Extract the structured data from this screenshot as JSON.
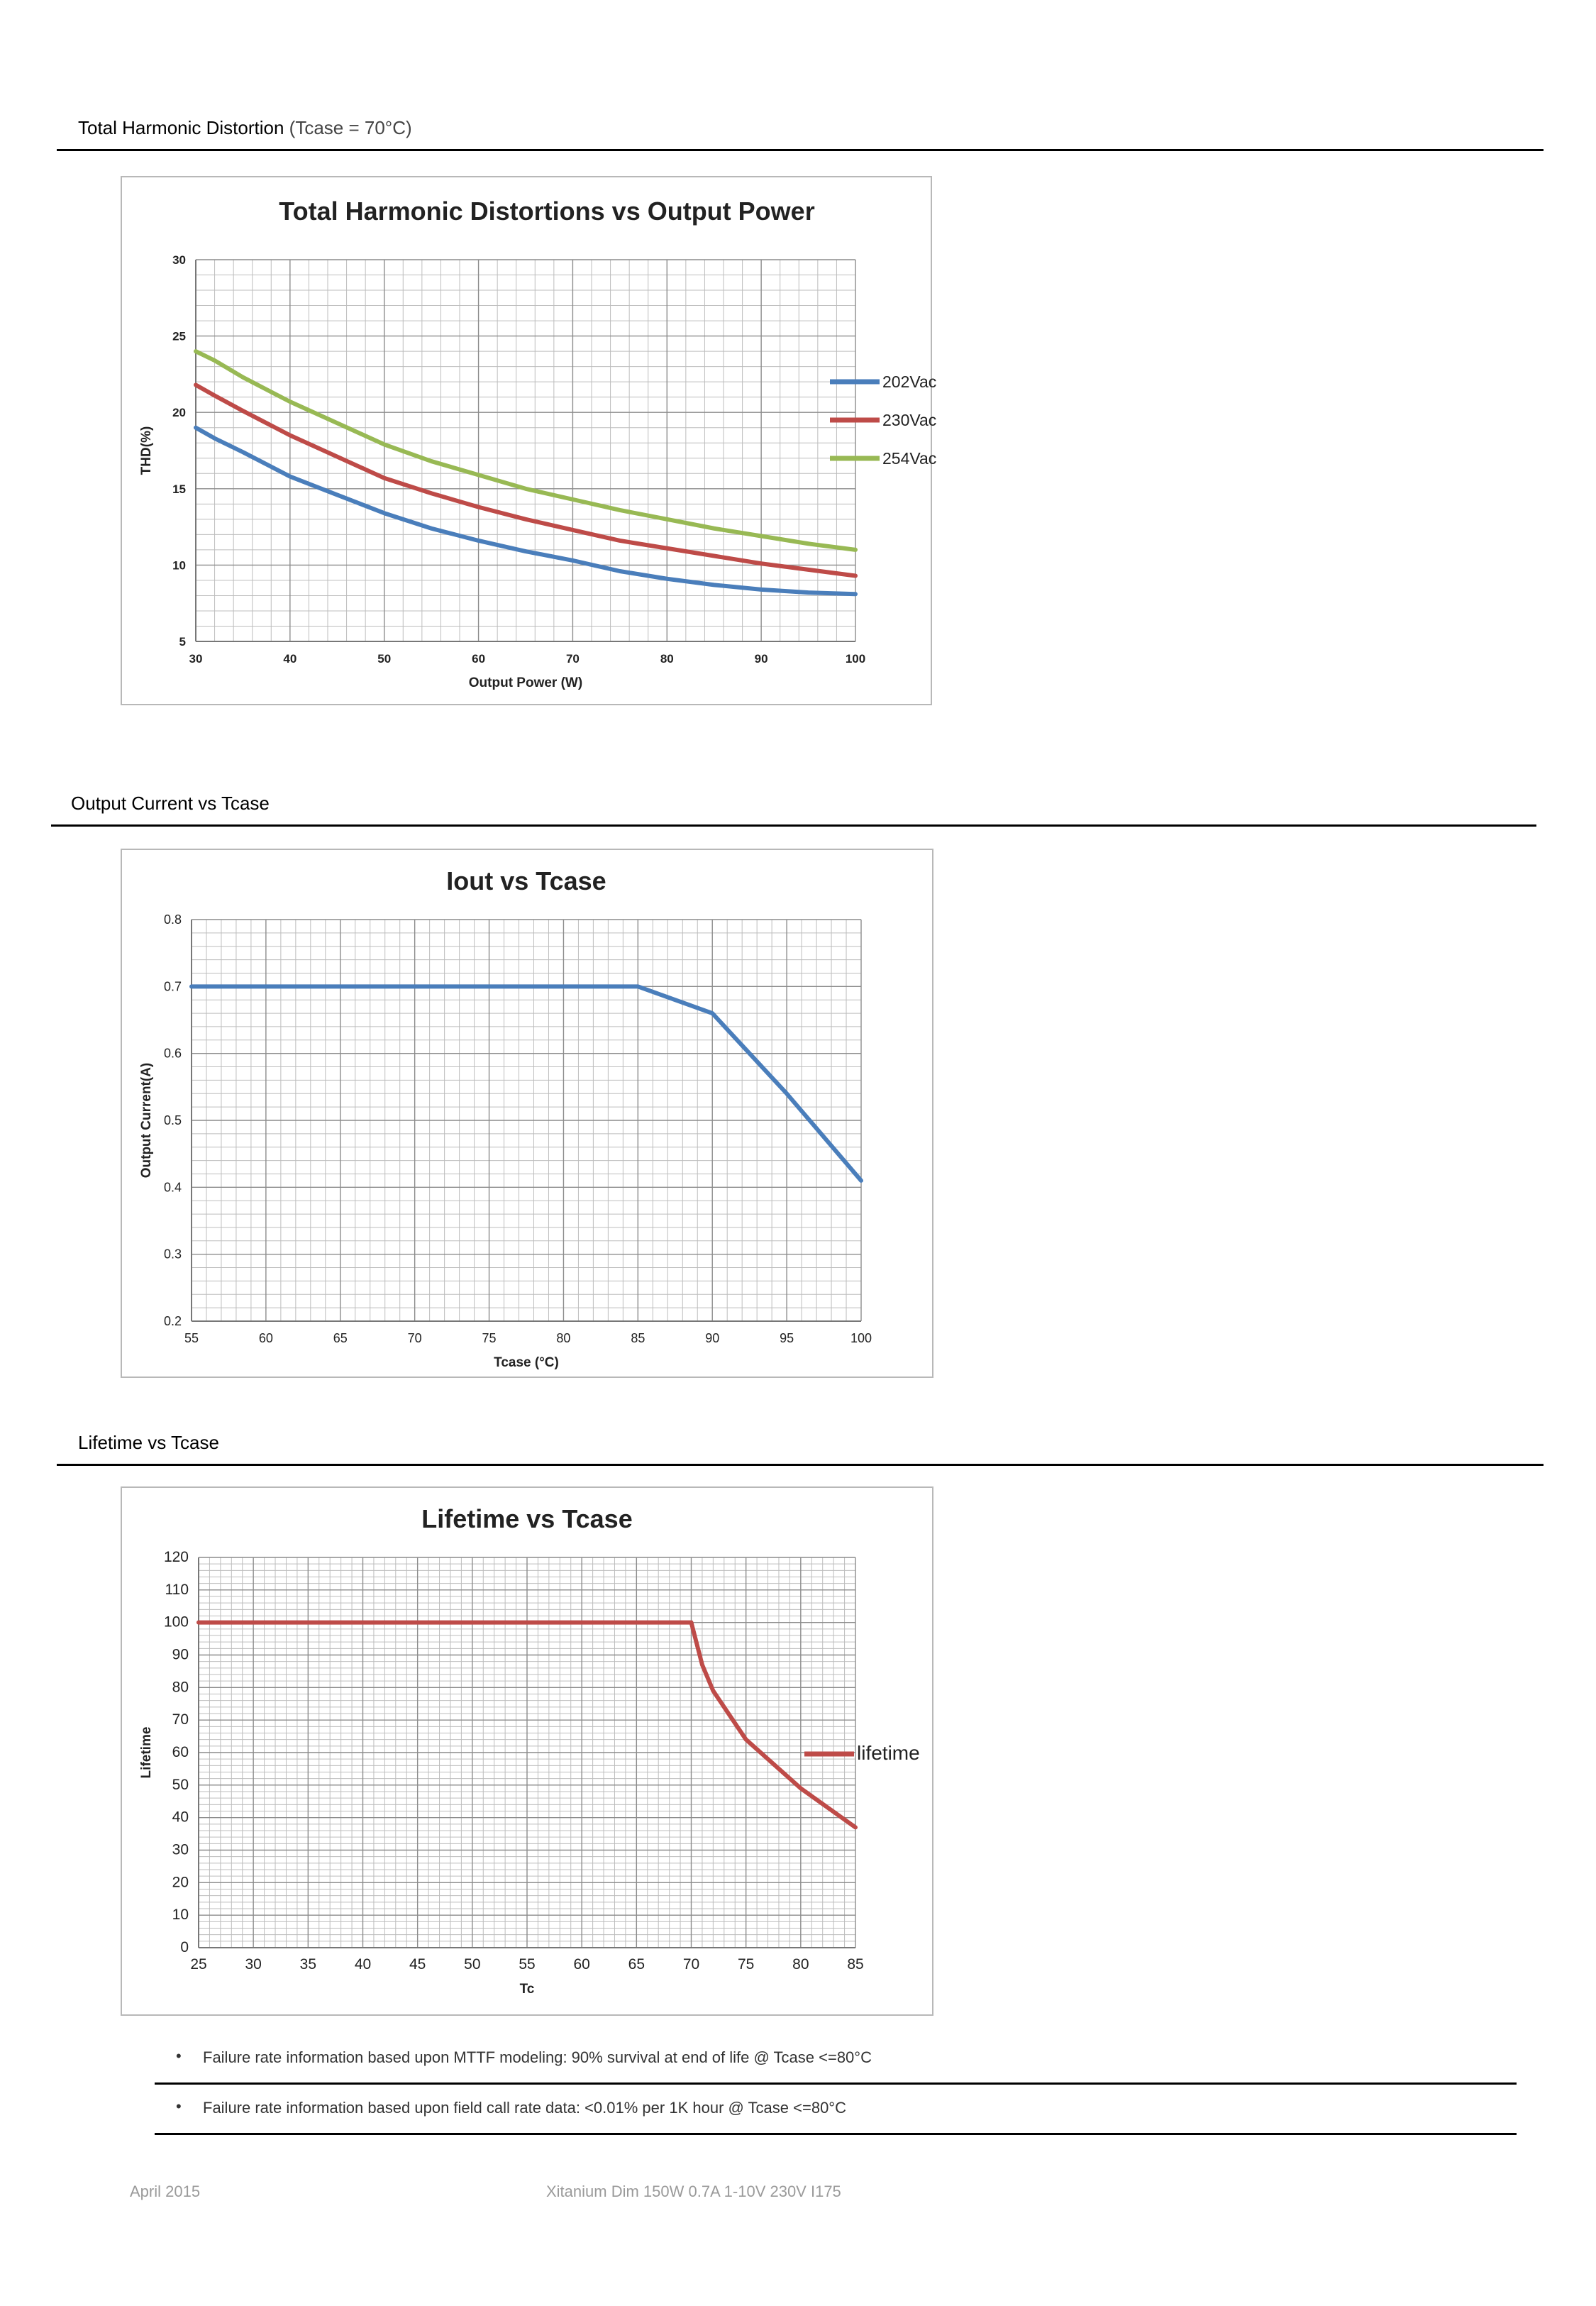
{
  "sections": {
    "thd": {
      "title": "Total Harmonic Distortion",
      "subtitle": "(Tcase = 70°C)"
    },
    "iout": {
      "title": "Output Current vs Tcase"
    },
    "life": {
      "title": "Lifetime vs Tcase"
    }
  },
  "notes": [
    "Failure rate information based upon MTTF modeling: 90% survival at end of life @ Tcase <=80°C",
    "Failure rate information based upon field call rate data: <0.01% per 1K hour @ Tcase <=80°C"
  ],
  "footer": {
    "date": "April 2015",
    "product": "Xitanium Dim 150W 0.7A 1-10V 230V I175"
  },
  "colors": {
    "blue": "#4a7ebb",
    "red": "#be4b48",
    "green": "#98b954",
    "grid": "#bdbdbd",
    "grid_major": "#8c8c8c"
  },
  "chart_data": [
    {
      "type": "line",
      "title": "Total Harmonic Distortions vs Output Power",
      "xlabel": "Output Power (W)",
      "ylabel": "THD(%)",
      "xlim": [
        30,
        100
      ],
      "ylim": [
        5,
        30
      ],
      "xticks": [
        30,
        40,
        50,
        60,
        70,
        80,
        90,
        100
      ],
      "yticks": [
        5,
        10,
        15,
        20,
        25,
        30
      ],
      "grid": true,
      "legend": "right",
      "series": [
        {
          "name": "202Vac",
          "color": "#4a7ebb",
          "x": [
            30,
            32,
            35,
            40,
            45,
            50,
            55,
            60,
            65,
            70,
            75,
            80,
            85,
            90,
            95,
            100
          ],
          "y": [
            19,
            18.3,
            17.4,
            15.8,
            14.6,
            13.4,
            12.4,
            11.6,
            10.9,
            10.3,
            9.6,
            9.1,
            8.7,
            8.4,
            8.2,
            8.1
          ]
        },
        {
          "name": "230Vac",
          "color": "#be4b48",
          "x": [
            30,
            32,
            35,
            40,
            45,
            50,
            55,
            60,
            65,
            70,
            75,
            80,
            85,
            90,
            95,
            100
          ],
          "y": [
            21.8,
            21.1,
            20.1,
            18.5,
            17.1,
            15.7,
            14.7,
            13.8,
            13.0,
            12.3,
            11.6,
            11.1,
            10.6,
            10.1,
            9.7,
            9.3
          ]
        },
        {
          "name": "254Vac",
          "color": "#98b954",
          "x": [
            30,
            32,
            35,
            40,
            45,
            50,
            55,
            60,
            65,
            70,
            75,
            80,
            85,
            90,
            95,
            100
          ],
          "y": [
            24,
            23.4,
            22.3,
            20.7,
            19.3,
            17.9,
            16.8,
            15.9,
            15.0,
            14.3,
            13.6,
            13.0,
            12.4,
            11.9,
            11.4,
            11.0
          ]
        }
      ]
    },
    {
      "type": "line",
      "title": "Iout vs Tcase",
      "xlabel": "Tcase (°C)",
      "ylabel": "Output Current(A)",
      "xlim": [
        55,
        100
      ],
      "ylim": [
        0.2,
        0.8
      ],
      "xticks": [
        55,
        60,
        65,
        70,
        75,
        80,
        85,
        90,
        95,
        100
      ],
      "yticks": [
        0.2,
        0.3,
        0.4,
        0.5,
        0.6,
        0.7,
        0.8
      ],
      "grid": true,
      "series": [
        {
          "color": "#4a7ebb",
          "x": [
            55,
            85,
            90,
            95,
            100
          ],
          "y": [
            0.7,
            0.7,
            0.66,
            0.54,
            0.41
          ]
        }
      ]
    },
    {
      "type": "line",
      "title": "Lifetime vs Tcase",
      "xlabel": "Tc",
      "ylabel": "Lifetime",
      "xlim": [
        25,
        85
      ],
      "ylim": [
        0,
        120
      ],
      "xticks": [
        25,
        30,
        35,
        40,
        45,
        50,
        55,
        60,
        65,
        70,
        75,
        80,
        85
      ],
      "yticks": [
        0,
        10,
        20,
        30,
        40,
        50,
        60,
        70,
        80,
        90,
        100,
        110,
        120
      ],
      "grid": true,
      "legend": "right",
      "series": [
        {
          "name": "lifetime",
          "color": "#be4b48",
          "x": [
            25,
            70,
            71,
            72,
            75,
            80,
            85
          ],
          "y": [
            100,
            100,
            87,
            79,
            64,
            49,
            37
          ]
        }
      ]
    }
  ]
}
